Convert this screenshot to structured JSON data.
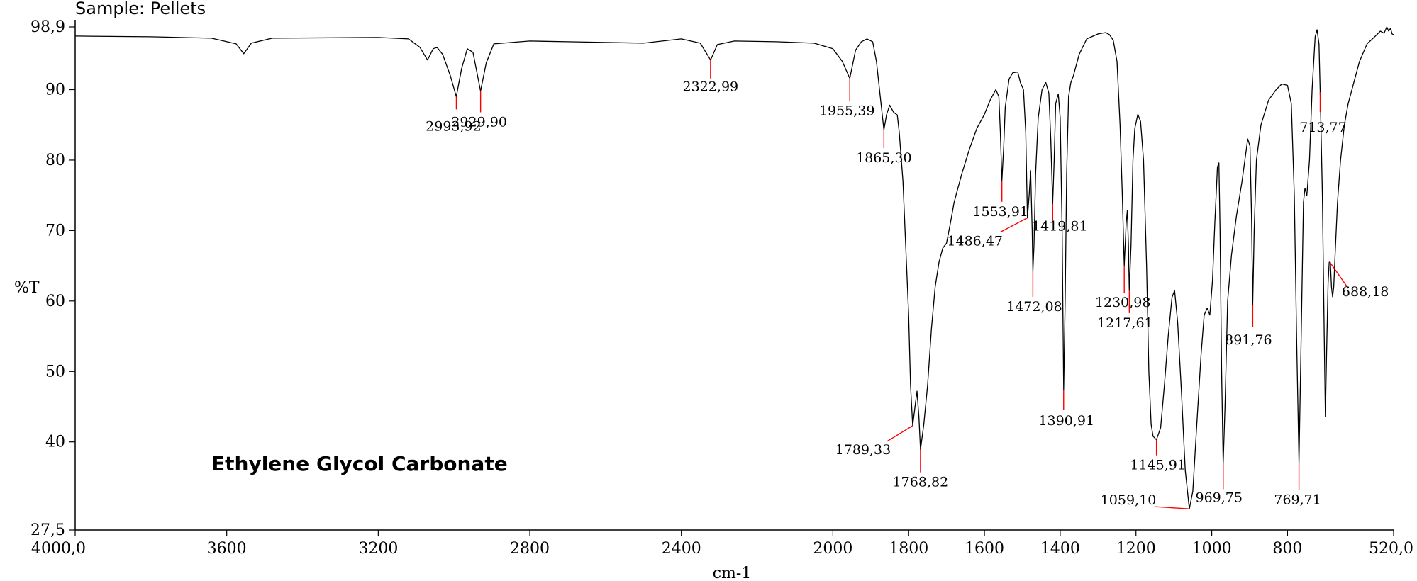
{
  "chart_data": {
    "type": "line",
    "sample_label": "Sample: Pellets",
    "compound_name": "Ethylene Glycol Carbonate",
    "xlabel": "cm-1",
    "ylabel": "%T",
    "xlim": [
      4000,
      520
    ],
    "ylim": [
      27.5,
      98.9
    ],
    "x_tick_labels": [
      {
        "v": 4000,
        "t": "4000,0"
      },
      {
        "v": 3600,
        "t": "3600"
      },
      {
        "v": 3200,
        "t": "3200"
      },
      {
        "v": 2800,
        "t": "2800"
      },
      {
        "v": 2400,
        "t": "2400"
      },
      {
        "v": 2000,
        "t": "2000"
      },
      {
        "v": 1800,
        "t": "1800"
      },
      {
        "v": 1600,
        "t": "1600"
      },
      {
        "v": 1400,
        "t": "1400"
      },
      {
        "v": 1200,
        "t": "1200"
      },
      {
        "v": 1000,
        "t": "1000"
      },
      {
        "v": 800,
        "t": "800"
      },
      {
        "v": 520,
        "t": "520,0"
      }
    ],
    "y_tick_labels": [
      {
        "v": 98.9,
        "t": "98,9"
      },
      {
        "v": 90,
        "t": "90"
      },
      {
        "v": 80,
        "t": "80"
      },
      {
        "v": 70,
        "t": "70"
      },
      {
        "v": 60,
        "t": "60"
      },
      {
        "v": 50,
        "t": "50"
      },
      {
        "v": 40,
        "t": "40"
      },
      {
        "v": 27.5,
        "t": "27,5"
      }
    ],
    "series": [
      {
        "points": [
          [
            4000,
            97.6
          ],
          [
            3800,
            97.5
          ],
          [
            3640,
            97.3
          ],
          [
            3575,
            96.5
          ],
          [
            3555,
            95.1
          ],
          [
            3535,
            96.6
          ],
          [
            3480,
            97.3
          ],
          [
            3200,
            97.4
          ],
          [
            3120,
            97.2
          ],
          [
            3090,
            96.0
          ],
          [
            3070,
            94.2
          ],
          [
            3055,
            95.8
          ],
          [
            3045,
            96.0
          ],
          [
            3030,
            95.0
          ],
          [
            3010,
            92.0
          ],
          [
            2993.92,
            89.0
          ],
          [
            2980,
            93.0
          ],
          [
            2965,
            95.8
          ],
          [
            2950,
            95.3
          ],
          [
            2929.9,
            89.8
          ],
          [
            2915,
            93.8
          ],
          [
            2895,
            96.5
          ],
          [
            2800,
            96.9
          ],
          [
            2700,
            96.8
          ],
          [
            2600,
            96.7
          ],
          [
            2500,
            96.6
          ],
          [
            2400,
            97.2
          ],
          [
            2350,
            96.6
          ],
          [
            2322.99,
            94.2
          ],
          [
            2305,
            96.4
          ],
          [
            2260,
            96.9
          ],
          [
            2150,
            96.8
          ],
          [
            2050,
            96.6
          ],
          [
            2000,
            95.8
          ],
          [
            1975,
            94.0
          ],
          [
            1955.39,
            91.6
          ],
          [
            1940,
            95.6
          ],
          [
            1925,
            96.8
          ],
          [
            1910,
            97.2
          ],
          [
            1895,
            96.8
          ],
          [
            1885,
            94.0
          ],
          [
            1875,
            89.0
          ],
          [
            1865.3,
            84.3
          ],
          [
            1858,
            86.5
          ],
          [
            1850,
            87.8
          ],
          [
            1840,
            86.8
          ],
          [
            1830,
            86.4
          ],
          [
            1825,
            84.0
          ],
          [
            1815,
            77.0
          ],
          [
            1808,
            68.0
          ],
          [
            1800,
            58.0
          ],
          [
            1795,
            48.0
          ],
          [
            1789.33,
            42.3
          ],
          [
            1782,
            45.5
          ],
          [
            1778,
            47.2
          ],
          [
            1773,
            43.5
          ],
          [
            1768.82,
            38.9
          ],
          [
            1760,
            42.5
          ],
          [
            1750,
            48.0
          ],
          [
            1740,
            56.0
          ],
          [
            1730,
            62.0
          ],
          [
            1720,
            65.5
          ],
          [
            1710,
            67.5
          ],
          [
            1700,
            68.2
          ],
          [
            1690,
            71.0
          ],
          [
            1680,
            74.0
          ],
          [
            1660,
            78.0
          ],
          [
            1640,
            81.5
          ],
          [
            1620,
            84.5
          ],
          [
            1600,
            86.5
          ],
          [
            1585,
            88.5
          ],
          [
            1570,
            90.0
          ],
          [
            1562,
            89.0
          ],
          [
            1558,
            84.0
          ],
          [
            1553.91,
            77.1
          ],
          [
            1549,
            82.0
          ],
          [
            1545,
            87.5
          ],
          [
            1535,
            91.5
          ],
          [
            1525,
            92.4
          ],
          [
            1512,
            92.5
          ],
          [
            1505,
            91.0
          ],
          [
            1497,
            90.0
          ],
          [
            1491,
            84.0
          ],
          [
            1486.47,
            71.8
          ],
          [
            1482,
            75.0
          ],
          [
            1478,
            78.5
          ],
          [
            1474,
            70.0
          ],
          [
            1472.08,
            64.2
          ],
          [
            1469,
            68.0
          ],
          [
            1465,
            78.0
          ],
          [
            1458,
            86.0
          ],
          [
            1448,
            90.0
          ],
          [
            1438,
            91.0
          ],
          [
            1430,
            89.5
          ],
          [
            1425,
            83.0
          ],
          [
            1419.81,
            73.8
          ],
          [
            1416,
            80.0
          ],
          [
            1412,
            88.0
          ],
          [
            1405,
            89.4
          ],
          [
            1400,
            86.0
          ],
          [
            1395,
            70.0
          ],
          [
            1390.91,
            47.4
          ],
          [
            1387,
            60.0
          ],
          [
            1383,
            78.0
          ],
          [
            1378,
            89.0
          ],
          [
            1372,
            91.0
          ],
          [
            1365,
            92.0
          ],
          [
            1350,
            95.0
          ],
          [
            1330,
            97.2
          ],
          [
            1300,
            97.9
          ],
          [
            1280,
            98.1
          ],
          [
            1270,
            97.8
          ],
          [
            1260,
            97.0
          ],
          [
            1250,
            94.0
          ],
          [
            1242,
            85.0
          ],
          [
            1236,
            75.0
          ],
          [
            1230.98,
            65.0
          ],
          [
            1226,
            71.0
          ],
          [
            1223,
            72.8
          ],
          [
            1220,
            68.0
          ],
          [
            1217.61,
            61.5
          ],
          [
            1213,
            68.0
          ],
          [
            1208,
            80.0
          ],
          [
            1203,
            84.5
          ],
          [
            1195,
            86.5
          ],
          [
            1188,
            85.5
          ],
          [
            1180,
            80.0
          ],
          [
            1172,
            65.0
          ],
          [
            1166,
            50.0
          ],
          [
            1160,
            42.5
          ],
          [
            1155,
            40.8
          ],
          [
            1145.91,
            40.3
          ],
          [
            1135,
            42.0
          ],
          [
            1125,
            48.0
          ],
          [
            1115,
            55.0
          ],
          [
            1105,
            60.5
          ],
          [
            1098,
            61.5
          ],
          [
            1090,
            57.0
          ],
          [
            1080,
            47.0
          ],
          [
            1070,
            36.0
          ],
          [
            1059.1,
            30.5
          ],
          [
            1050,
            33.0
          ],
          [
            1040,
            42.0
          ],
          [
            1028,
            52.5
          ],
          [
            1020,
            58.0
          ],
          [
            1012,
            59.0
          ],
          [
            1005,
            58.0
          ],
          [
            998,
            63.0
          ],
          [
            992,
            71.0
          ],
          [
            985,
            79.0
          ],
          [
            981,
            79.6
          ],
          [
            978,
            70.0
          ],
          [
            974,
            50.0
          ],
          [
            969.75,
            36.9
          ],
          [
            965,
            45.0
          ],
          [
            958,
            60.0
          ],
          [
            948,
            66.5
          ],
          [
            935,
            72.0
          ],
          [
            920,
            77.0
          ],
          [
            905,
            83.0
          ],
          [
            899,
            82.0
          ],
          [
            895,
            72.0
          ],
          [
            891.76,
            59.5
          ],
          [
            888,
            70.0
          ],
          [
            882,
            80.0
          ],
          [
            870,
            85.0
          ],
          [
            850,
            88.5
          ],
          [
            830,
            90.0
          ],
          [
            815,
            90.8
          ],
          [
            800,
            90.6
          ],
          [
            790,
            88.0
          ],
          [
            782,
            75.0
          ],
          [
            776,
            55.0
          ],
          [
            769.71,
            37.0
          ],
          [
            764,
            55.0
          ],
          [
            758,
            74.0
          ],
          [
            754,
            76.0
          ],
          [
            749,
            75.0
          ],
          [
            742,
            80.0
          ],
          [
            735,
            90.0
          ],
          [
            727,
            97.5
          ],
          [
            722,
            98.5
          ],
          [
            717,
            96.5
          ],
          [
            713,
            88.0
          ],
          [
            708,
            75.0
          ],
          [
            703,
            55.0
          ],
          [
            700,
            43.6
          ],
          [
            697,
            52.0
          ],
          [
            693,
            62.5
          ],
          [
            690,
            65.5
          ],
          [
            687,
            65.5
          ],
          [
            684,
            62.0
          ],
          [
            681,
            60.6
          ],
          [
            678,
            62.0
          ],
          [
            674,
            67.0
          ],
          [
            668,
            74.0
          ],
          [
            660,
            80.0
          ],
          [
            650,
            85.0
          ],
          [
            640,
            88.0
          ],
          [
            625,
            91.0
          ],
          [
            610,
            94.0
          ],
          [
            590,
            96.5
          ],
          [
            570,
            97.5
          ],
          [
            555,
            98.3
          ],
          [
            545,
            98.0
          ],
          [
            538,
            98.9
          ],
          [
            533,
            98.3
          ],
          [
            528,
            98.7
          ],
          [
            524,
            97.9
          ],
          [
            520,
            97.8
          ]
        ]
      }
    ],
    "peak_labels": [
      {
        "x": 2993.92,
        "label": "2993,92"
      },
      {
        "x": 2929.9,
        "label": "2929,90"
      },
      {
        "x": 2322.99,
        "label": "2322,99"
      },
      {
        "x": 1955.39,
        "label": "1955,39"
      },
      {
        "x": 1865.3,
        "label": "1865,30"
      },
      {
        "x": 1789.33,
        "label": "1789,33"
      },
      {
        "x": 1768.82,
        "label": "1768,82"
      },
      {
        "x": 1553.91,
        "label": "1553,91"
      },
      {
        "x": 1486.47,
        "label": "1486,47"
      },
      {
        "x": 1472.08,
        "label": "1472,08"
      },
      {
        "x": 1419.81,
        "label": "1419,81"
      },
      {
        "x": 1390.91,
        "label": "1390,91"
      },
      {
        "x": 1230.98,
        "label": "1230,98"
      },
      {
        "x": 1217.61,
        "label": "1217,61"
      },
      {
        "x": 1145.91,
        "label": "1145,91"
      },
      {
        "x": 1059.1,
        "label": "1059,10"
      },
      {
        "x": 969.75,
        "label": "969,75"
      },
      {
        "x": 891.76,
        "label": "891,76"
      },
      {
        "x": 769.71,
        "label": "769,71"
      },
      {
        "x": 713.77,
        "label": "713,77"
      },
      {
        "x": 688.18,
        "label": "688,18"
      }
    ],
    "colors": {
      "line": "#000000",
      "peak_marker": "#ff0000",
      "axis": "#000000"
    }
  }
}
